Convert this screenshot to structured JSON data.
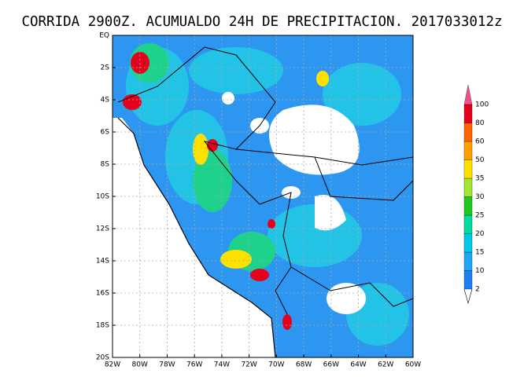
{
  "title": "CORRIDA 2900Z. ACUMUALDO 24H DE PRECIPITACION. 2017033012z",
  "lat_labels": [
    "EQ",
    "2S",
    "4S",
    "6S",
    "8S",
    "10S",
    "12S",
    "14S",
    "16S",
    "18S",
    "20S"
  ],
  "lon_labels": [
    "82W",
    "80W",
    "78W",
    "76W",
    "74W",
    "72W",
    "70W",
    "68W",
    "66W",
    "64W",
    "62W",
    "60W"
  ],
  "colorbar": {
    "labels": [
      2,
      10,
      15,
      20,
      25,
      30,
      35,
      50,
      60,
      80,
      100
    ],
    "colors": [
      "#1e7ff0",
      "#1ea5f5",
      "#00c8e6",
      "#00dca0",
      "#1ec81e",
      "#a0e632",
      "#ffe100",
      "#ffa000",
      "#ff6400",
      "#e6001e",
      "#f0508c"
    ]
  }
}
